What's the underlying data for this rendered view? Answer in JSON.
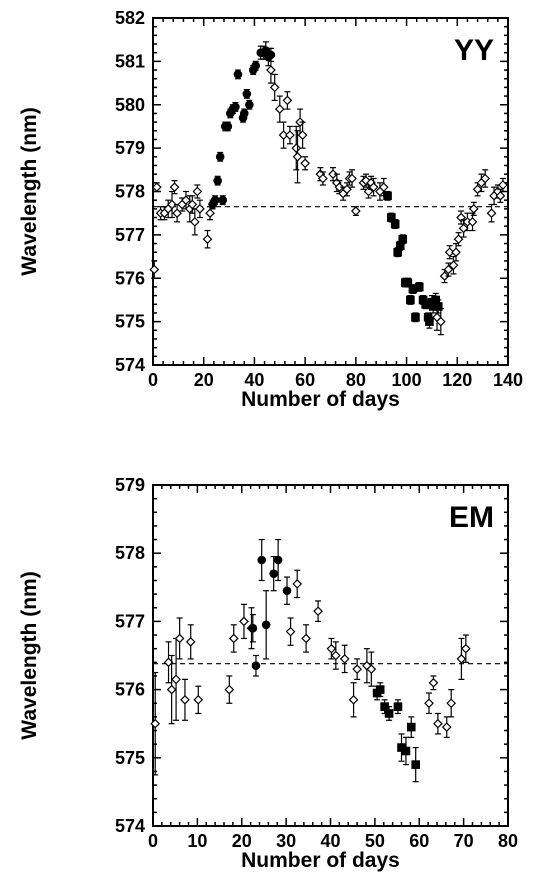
{
  "chart_data": [
    {
      "type": "scatter",
      "panel_label": "YY",
      "xlabel": "Number of days",
      "ylabel": "Wavelength (nm)",
      "xlim": [
        0,
        140
      ],
      "ylim": [
        574,
        582
      ],
      "xticks": [
        0,
        20,
        40,
        60,
        80,
        100,
        120,
        140
      ],
      "yticks": [
        574,
        575,
        576,
        577,
        578,
        579,
        580,
        581,
        582
      ],
      "reference_line": {
        "y": 577.65,
        "style": "dashed"
      },
      "series": [
        {
          "marker": "open-diamond",
          "points": [
            [
              0.5,
              576.2,
              0.2
            ],
            [
              1.5,
              578.1,
              0.1
            ],
            [
              3,
              577.5,
              0.15
            ],
            [
              4.5,
              577.5,
              0.15
            ],
            [
              6,
              577.6,
              0.2
            ],
            [
              7.5,
              577.7,
              0.3
            ],
            [
              8.5,
              578.1,
              0.15
            ],
            [
              9.5,
              577.5,
              0.2
            ],
            [
              11.5,
              577.7,
              0.15
            ],
            [
              13,
              577.8,
              0.2
            ],
            [
              14.5,
              577.6,
              0.3
            ],
            [
              15.5,
              577.7,
              0.2
            ],
            [
              16.5,
              577.3,
              0.3
            ],
            [
              17.5,
              578.0,
              0.15
            ],
            [
              18.5,
              577.6,
              0.2
            ],
            [
              21.5,
              576.9,
              0.2
            ],
            [
              22.5,
              577.5,
              0.15
            ],
            [
              46.5,
              580.8,
              0.3
            ],
            [
              48,
              580.4,
              0.3
            ],
            [
              50,
              579.9,
              0.3
            ],
            [
              51.5,
              579.3,
              0.3
            ],
            [
              53,
              580.1,
              0.2
            ],
            [
              54,
              579.3,
              0.2
            ],
            [
              56.5,
              579.0,
              0.5
            ],
            [
              57,
              578.8,
              0.6
            ],
            [
              58,
              579.6,
              0.3
            ],
            [
              59,
              579.3,
              0.3
            ],
            [
              60,
              578.65,
              0.15
            ],
            [
              66,
              578.4,
              0.15
            ],
            [
              67,
              578.3,
              0.15
            ],
            [
              71,
              578.4,
              0.15
            ],
            [
              72.5,
              578.2,
              0.2
            ],
            [
              73.5,
              578.1,
              0.15
            ],
            [
              75,
              577.95,
              0.15
            ],
            [
              76.5,
              578.05,
              0.15
            ],
            [
              77.5,
              578.3,
              0.15
            ],
            [
              78.5,
              578.3,
              0.2
            ],
            [
              80,
              577.55,
              0.1
            ],
            [
              83,
              578.2,
              0.15
            ],
            [
              84,
              578.25,
              0.15
            ],
            [
              85,
              578.0,
              0.15
            ],
            [
              86,
              578.2,
              0.15
            ],
            [
              87,
              578.1,
              0.2
            ],
            [
              89.5,
              578.0,
              0.2
            ],
            [
              91,
              578.1,
              0.2
            ],
            [
              112,
              575.1,
              0.3
            ],
            [
              113.5,
              575.0,
              0.3
            ],
            [
              115,
              576.05,
              0.15
            ],
            [
              116.5,
              576.2,
              0.15
            ],
            [
              117,
              576.6,
              0.15
            ],
            [
              118.5,
              576.3,
              0.2
            ],
            [
              119.5,
              576.6,
              0.2
            ],
            [
              120.5,
              576.9,
              0.15
            ],
            [
              121.5,
              577.4,
              0.15
            ],
            [
              122.5,
              577.15,
              0.2
            ],
            [
              124,
              577.3,
              0.2
            ],
            [
              126,
              577.3,
              0.2
            ],
            [
              126.5,
              577.6,
              0.15
            ],
            [
              128,
              578.05,
              0.15
            ],
            [
              129.5,
              578.2,
              0.2
            ],
            [
              131,
              578.3,
              0.2
            ],
            [
              133.5,
              577.5,
              0.2
            ],
            [
              134.5,
              577.9,
              0.2
            ],
            [
              136,
              578.0,
              0.15
            ],
            [
              137,
              577.9,
              0.15
            ],
            [
              138,
              578.15,
              0.15
            ]
          ]
        },
        {
          "marker": "filled-circle",
          "points": [
            [
              23.5,
              577.7,
              0.1
            ],
            [
              24.5,
              577.8,
              0.1
            ],
            [
              25.5,
              578.25,
              0.1
            ],
            [
              26.5,
              578.8,
              0.1
            ],
            [
              27.5,
              577.8,
              0.1
            ],
            [
              28.5,
              579.5,
              0.1
            ],
            [
              29.5,
              579.5,
              0.1
            ],
            [
              30.5,
              579.8,
              0.1
            ],
            [
              31.5,
              579.9,
              0.1
            ],
            [
              32.5,
              579.95,
              0.1
            ],
            [
              33.5,
              580.7,
              0.1
            ],
            [
              35.5,
              579.7,
              0.1
            ],
            [
              36,
              579.8,
              0.1
            ],
            [
              37,
              580.25,
              0.1
            ],
            [
              38,
              580.0,
              0.1
            ],
            [
              39.5,
              580.8,
              0.1
            ],
            [
              40.5,
              580.9,
              0.1
            ],
            [
              42.5,
              581.2,
              0.15
            ],
            [
              43.5,
              581.2,
              0.15
            ],
            [
              44.5,
              581.25,
              0.2
            ],
            [
              45.5,
              581.1,
              0.2
            ],
            [
              46.5,
              581.15,
              0.15
            ]
          ]
        },
        {
          "marker": "filled-square",
          "points": [
            [
              92.5,
              577.9,
              0.1
            ],
            [
              94,
              577.4,
              0.1
            ],
            [
              95.5,
              577.25,
              0.1
            ],
            [
              96.5,
              576.6,
              0.1
            ],
            [
              97.5,
              576.75,
              0.1
            ],
            [
              98.5,
              576.9,
              0.1
            ],
            [
              99.5,
              575.9,
              0.1
            ],
            [
              100.5,
              575.9,
              0.1
            ],
            [
              101.5,
              575.5,
              0.1
            ],
            [
              102.5,
              575.75,
              0.1
            ],
            [
              103.5,
              575.1,
              0.1
            ],
            [
              105,
              575.8,
              0.1
            ],
            [
              106.5,
              575.5,
              0.1
            ],
            [
              107.5,
              575.4,
              0.1
            ],
            [
              108.5,
              575.1,
              0.1
            ],
            [
              109,
              575.0,
              0.15
            ],
            [
              110,
              575.45,
              0.15
            ],
            [
              110.5,
              575.35,
              0.15
            ],
            [
              111.5,
              575.5,
              0.15
            ],
            [
              112.5,
              575.35,
              0.15
            ]
          ]
        }
      ]
    },
    {
      "type": "scatter",
      "panel_label": "EM",
      "xlabel": "Number of days",
      "ylabel": "Wavelength (nm)",
      "xlim": [
        0,
        80
      ],
      "ylim": [
        574,
        579
      ],
      "xticks": [
        0,
        10,
        20,
        30,
        40,
        50,
        60,
        70,
        80
      ],
      "yticks": [
        574,
        575,
        576,
        577,
        578,
        579
      ],
      "reference_line": {
        "y": 576.38,
        "style": "dashed"
      },
      "series": [
        {
          "marker": "open-diamond",
          "points": [
            [
              0.5,
              575.5,
              0.75
            ],
            [
              3.5,
              576.4,
              0.3
            ],
            [
              4.2,
              576.0,
              0.5
            ],
            [
              5.2,
              576.15,
              0.6
            ],
            [
              6,
              576.75,
              0.3
            ],
            [
              7.2,
              575.85,
              0.3
            ],
            [
              8.5,
              576.7,
              0.25
            ],
            [
              10.2,
              575.85,
              0.2
            ],
            [
              17.2,
              576.0,
              0.2
            ],
            [
              18.2,
              576.75,
              0.2
            ],
            [
              20.5,
              577.0,
              0.25
            ],
            [
              22.2,
              576.9,
              0.3
            ],
            [
              31,
              576.85,
              0.2
            ],
            [
              32.5,
              577.55,
              0.2
            ],
            [
              34.5,
              576.75,
              0.2
            ],
            [
              37.2,
              577.15,
              0.15
            ],
            [
              40.2,
              576.6,
              0.15
            ],
            [
              41.2,
              576.5,
              0.2
            ],
            [
              43.2,
              576.45,
              0.2
            ],
            [
              45.2,
              575.85,
              0.25
            ],
            [
              46,
              576.3,
              0.15
            ],
            [
              48.2,
              576.35,
              0.25
            ],
            [
              49.2,
              576.3,
              0.25
            ],
            [
              62.2,
              575.8,
              0.15
            ],
            [
              63.2,
              576.1,
              0.1
            ],
            [
              64.2,
              575.5,
              0.15
            ],
            [
              66.2,
              575.45,
              0.15
            ],
            [
              67.2,
              575.8,
              0.2
            ],
            [
              69.5,
              576.45,
              0.3
            ],
            [
              70.5,
              576.6,
              0.2
            ]
          ]
        },
        {
          "marker": "filled-circle",
          "points": [
            [
              22.5,
              576.9,
              0.2
            ],
            [
              23.2,
              576.35,
              0.15
            ],
            [
              24.5,
              577.9,
              0.3
            ],
            [
              25.5,
              576.95,
              0.5
            ],
            [
              27.2,
              577.7,
              0.25
            ],
            [
              28.2,
              577.9,
              0.3
            ],
            [
              30.2,
              577.45,
              0.2
            ]
          ]
        },
        {
          "marker": "filled-square",
          "points": [
            [
              50.5,
              575.95,
              0.1
            ],
            [
              51.2,
              576.0,
              0.1
            ],
            [
              52.2,
              575.75,
              0.1
            ],
            [
              53.2,
              575.65,
              0.1
            ],
            [
              55.2,
              575.75,
              0.1
            ],
            [
              56,
              575.15,
              0.2
            ],
            [
              57,
              575.1,
              0.2
            ],
            [
              58.2,
              575.45,
              0.15
            ],
            [
              59.2,
              574.9,
              0.25
            ]
          ]
        }
      ]
    }
  ]
}
